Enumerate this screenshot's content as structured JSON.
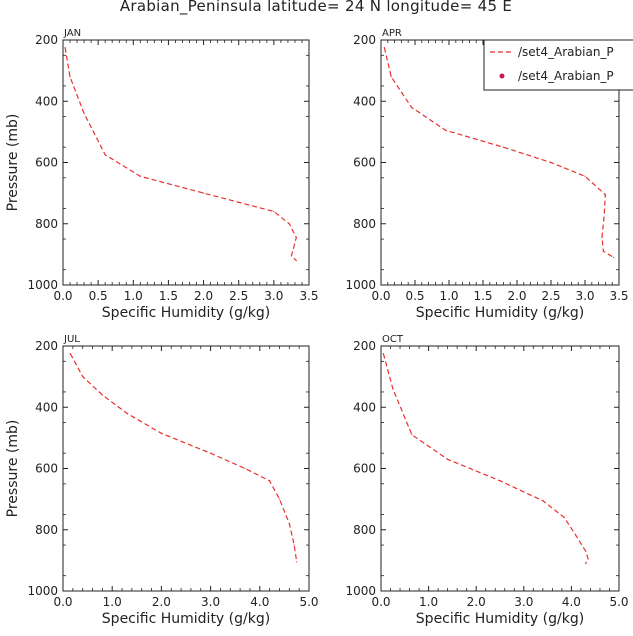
{
  "figure": {
    "title": "Arabian_Peninsula  latitude= 24 N longitude= 45 E"
  },
  "legend": {
    "placement": "top-right",
    "entries": [
      {
        "label": "/set4_Arabian_P",
        "style": "dashed-line",
        "color": "#e8312f"
      },
      {
        "label": "/set4_Arabian_P",
        "style": "dot",
        "color": "#c01c4a"
      }
    ]
  },
  "colors": {
    "series": "#e8312f",
    "marker": "#c01c4a",
    "axes": "#222222"
  },
  "chart_data": [
    {
      "type": "line",
      "panel": "JAN",
      "xlabel": "Specific Humidity (g/kg)",
      "ylabel": "Pressure (mb)",
      "xlim": [
        0,
        3.5
      ],
      "ylim": [
        200,
        1000
      ],
      "y_inverted": true,
      "xticks": [
        "0.0",
        "0.5",
        "1.0",
        "1.5",
        "2.0",
        "2.5",
        "3.0",
        "3.5"
      ],
      "yticks": [
        "200",
        "400",
        "600",
        "800",
        "1000"
      ],
      "series": [
        {
          "name": "/set4_Arabian_P",
          "x": [
            0.03,
            0.1,
            0.3,
            0.6,
            1.1,
            2.0,
            3.0,
            3.22,
            3.32,
            3.28,
            3.25,
            3.32
          ],
          "y": [
            225,
            320,
            440,
            575,
            645,
            700,
            760,
            800,
            845,
            880,
            905,
            920
          ]
        }
      ]
    },
    {
      "type": "line",
      "panel": "APR",
      "xlabel": "Specific Humidity (g/kg)",
      "ylabel": "",
      "xlim": [
        0,
        3.5
      ],
      "ylim": [
        200,
        1000
      ],
      "y_inverted": true,
      "xticks": [
        "0.0",
        "0.5",
        "1.0",
        "1.5",
        "2.0",
        "2.5",
        "3.0",
        "3.5"
      ],
      "yticks": [
        "200",
        "400",
        "600",
        "800",
        "1000"
      ],
      "series": [
        {
          "name": "/set4_Arabian_P",
          "x": [
            0.05,
            0.15,
            0.45,
            0.95,
            1.8,
            2.5,
            3.0,
            3.3,
            3.28,
            3.25,
            3.27,
            3.42
          ],
          "y": [
            225,
            320,
            420,
            495,
            550,
            600,
            645,
            705,
            780,
            845,
            890,
            910
          ]
        }
      ]
    },
    {
      "type": "line",
      "panel": "JUL",
      "xlabel": "Specific Humidity (g/kg)",
      "ylabel": "Pressure (mb)",
      "xlim": [
        0,
        5.0
      ],
      "ylim": [
        200,
        1000
      ],
      "y_inverted": true,
      "xticks": [
        "0.0",
        "1.0",
        "2.0",
        "3.0",
        "4.0",
        "5.0"
      ],
      "yticks": [
        "200",
        "400",
        "600",
        "800",
        "1000"
      ],
      "series": [
        {
          "name": "/set4_Arabian_P",
          "x": [
            0.15,
            0.4,
            0.8,
            1.3,
            2.0,
            3.0,
            3.7,
            4.2,
            4.4,
            4.6,
            4.7,
            4.75
          ],
          "y": [
            225,
            300,
            360,
            420,
            485,
            550,
            600,
            640,
            700,
            780,
            850,
            905
          ]
        }
      ]
    },
    {
      "type": "line",
      "panel": "OCT",
      "xlabel": "Specific Humidity (g/kg)",
      "ylabel": "",
      "xlim": [
        0,
        5.0
      ],
      "ylim": [
        200,
        1000
      ],
      "y_inverted": true,
      "xticks": [
        "0.0",
        "1.0",
        "2.0",
        "3.0",
        "4.0",
        "5.0"
      ],
      "yticks": [
        "200",
        "400",
        "600",
        "800",
        "1000"
      ],
      "series": [
        {
          "name": "/set4_Arabian_P",
          "x": [
            0.05,
            0.25,
            0.65,
            1.4,
            2.5,
            3.4,
            3.85,
            4.1,
            4.3,
            4.35,
            4.3
          ],
          "y": [
            225,
            340,
            490,
            570,
            640,
            705,
            760,
            820,
            870,
            895,
            910
          ]
        }
      ]
    }
  ]
}
